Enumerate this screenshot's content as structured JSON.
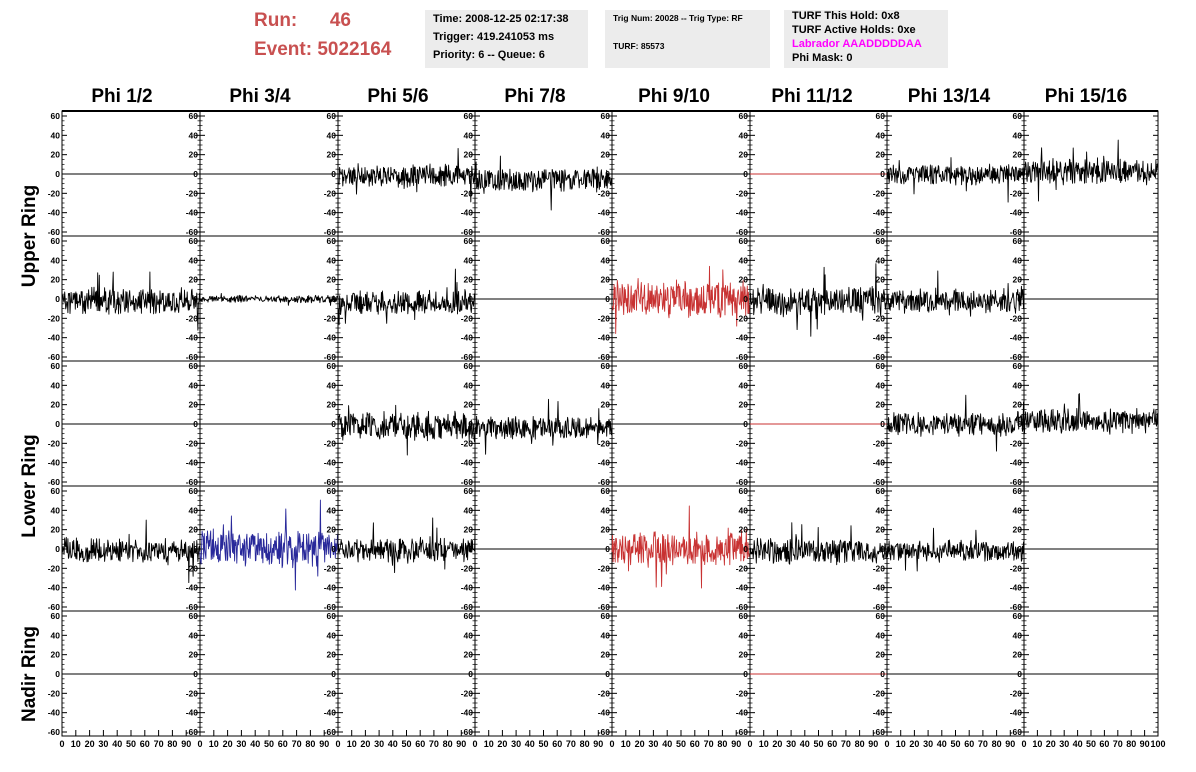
{
  "header": {
    "run_label": "Run:",
    "run_value": "46",
    "event_label": "Event:",
    "event_value": "5022164",
    "time": "Time: 2008-12-25 02:17:38",
    "trigger": "Trigger: 419.241053 ms",
    "priority": "Priority: 6 -- Queue: 6",
    "trig_num": "Trig Num: 20028 -- Trig Type: RF",
    "turf": "TURF: 85573",
    "turf_this_hold": "TURF This Hold: 0x8",
    "turf_active_holds": "TURF Active Holds: 0xe",
    "labrador": "Labrador AAADDDDDAA",
    "phi_mask": "Phi Mask: 0",
    "labrador_color": "#ff00ff",
    "run_color": "#c85050"
  },
  "columns": [
    "Phi 1/2",
    "Phi 3/4",
    "Phi 5/6",
    "Phi 7/8",
    "Phi 9/10",
    "Phi 11/12",
    "Phi 13/14",
    "Phi 15/16"
  ],
  "ring_labels": [
    "Upper Ring",
    "Lower Ring",
    "Nadir Ring"
  ],
  "chart_data": {
    "type": "line",
    "layout": "grid of 5 rows x 8 columns of waveform panels",
    "xlim": [
      0,
      100
    ],
    "ylim": [
      -60,
      60
    ],
    "x_ticks": [
      0,
      10,
      20,
      30,
      40,
      50,
      60,
      70,
      80,
      90,
      100
    ],
    "y_ticks": [
      60,
      40,
      20,
      0,
      -20,
      -40,
      -60
    ],
    "colors": {
      "normal": "#000000",
      "red": "#c83232",
      "blue": "#28289a"
    },
    "panels": [
      [
        {
          "style": "flat",
          "color": "black"
        },
        {
          "style": "flat",
          "color": "black"
        },
        {
          "style": "noise",
          "amp": 14,
          "offset": -2,
          "color": "black"
        },
        {
          "style": "noise",
          "amp": 14,
          "offset": -6,
          "color": "black"
        },
        {
          "style": "flat",
          "color": "black"
        },
        {
          "style": "flat",
          "color": "red"
        },
        {
          "style": "noise",
          "amp": 12,
          "offset": -1,
          "color": "black"
        },
        {
          "style": "noise",
          "amp": 15,
          "offset": 3,
          "color": "black"
        }
      ],
      [
        {
          "style": "noise",
          "amp": 15,
          "offset": -2,
          "color": "black"
        },
        {
          "style": "noise",
          "amp": 4,
          "offset": 0,
          "color": "black"
        },
        {
          "style": "noise",
          "amp": 14,
          "offset": -4,
          "color": "black"
        },
        {
          "style": "flat",
          "color": "black"
        },
        {
          "style": "noise",
          "amp": 22,
          "offset": 0,
          "color": "red"
        },
        {
          "style": "noise",
          "amp": 17,
          "offset": -2,
          "color": "black"
        },
        {
          "style": "noise",
          "amp": 14,
          "offset": -2,
          "color": "black"
        },
        {
          "style": "flat",
          "color": "black"
        }
      ],
      [
        {
          "style": "flat",
          "color": "black"
        },
        {
          "style": "flat",
          "color": "black"
        },
        {
          "style": "noise",
          "amp": 17,
          "offset": -2,
          "color": "black"
        },
        {
          "style": "noise",
          "amp": 13,
          "offset": -4,
          "color": "black"
        },
        {
          "style": "flat",
          "color": "black"
        },
        {
          "style": "flat",
          "color": "red"
        },
        {
          "style": "noise",
          "amp": 14,
          "offset": 0,
          "color": "black"
        },
        {
          "style": "noise",
          "amp": 14,
          "offset": 3,
          "color": "black"
        }
      ],
      [
        {
          "style": "noise",
          "amp": 15,
          "offset": -2,
          "color": "black"
        },
        {
          "style": "noise",
          "amp": 22,
          "offset": 0,
          "color": "blue"
        },
        {
          "style": "noise",
          "amp": 16,
          "offset": -2,
          "color": "black"
        },
        {
          "style": "flat",
          "color": "black"
        },
        {
          "style": "noise",
          "amp": 21,
          "offset": 0,
          "color": "red"
        },
        {
          "style": "noise",
          "amp": 15,
          "offset": -2,
          "color": "black"
        },
        {
          "style": "noise",
          "amp": 12,
          "offset": -2,
          "color": "black"
        },
        {
          "style": "flat",
          "color": "black"
        }
      ],
      [
        {
          "style": "flat",
          "color": "black"
        },
        {
          "style": "flat",
          "color": "black"
        },
        {
          "style": "flat",
          "color": "black"
        },
        {
          "style": "flat",
          "color": "black"
        },
        {
          "style": "flat",
          "color": "black"
        },
        {
          "style": "flat",
          "color": "red"
        },
        {
          "style": "flat",
          "color": "black"
        },
        {
          "style": "flat",
          "color": "black"
        }
      ]
    ]
  }
}
